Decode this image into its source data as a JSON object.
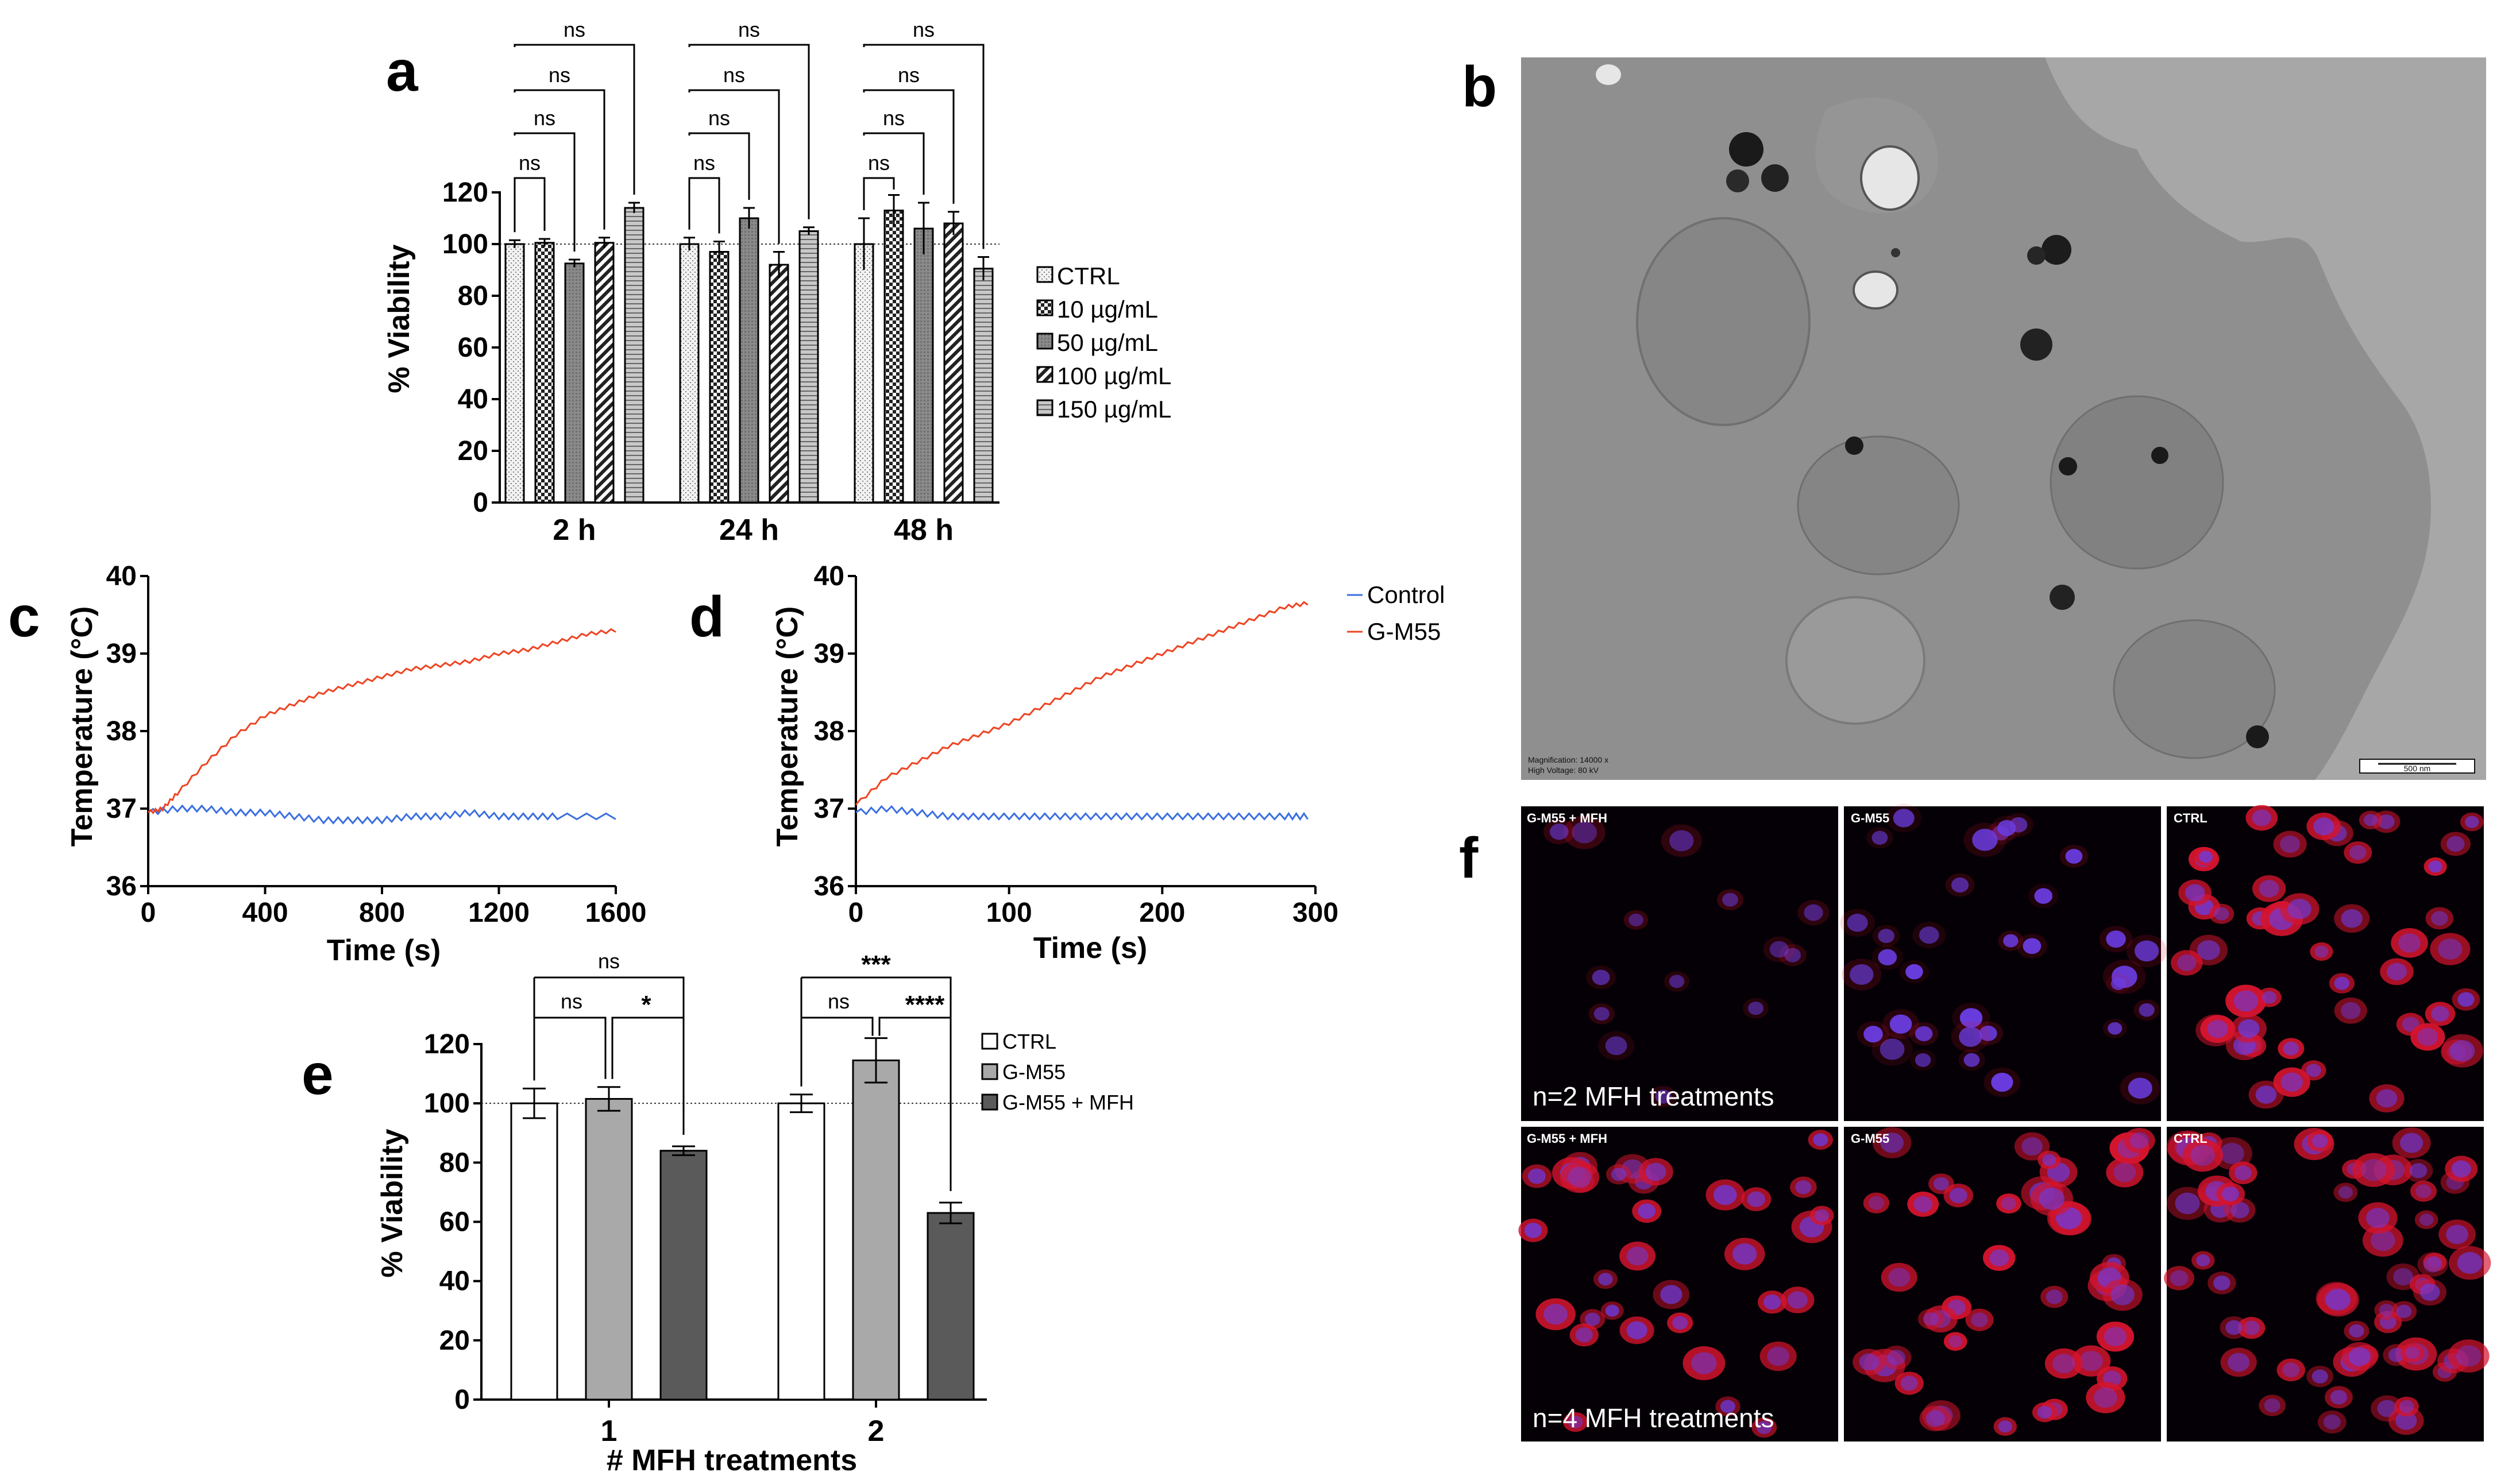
{
  "colors": {
    "control": "#3b6fe0",
    "gm55": "#ee4422",
    "bar_ctrl_e": "#ffffff",
    "bar_gm55_e": "#a9a9a9",
    "bar_gm55_mfh_e": "#5a5a5a"
  },
  "panels": {
    "a": "a",
    "b": "b",
    "c": "c",
    "d": "d",
    "e": "e",
    "f": "f"
  },
  "chart_data": [
    {
      "id": "a",
      "type": "bar",
      "title": "",
      "ylabel": "% Viability",
      "xlabel": "",
      "ylim": [
        0,
        120
      ],
      "yticks": [
        0,
        20,
        40,
        60,
        80,
        100,
        120
      ],
      "ref_line": 100,
      "categories": [
        "2 h",
        "24 h",
        "48 h"
      ],
      "series": [
        {
          "name": "CTRL",
          "pattern": "dots",
          "values": [
            100,
            100,
            100
          ],
          "errors": [
            1.5,
            2.5,
            10
          ]
        },
        {
          "name": "10 µg/mL",
          "pattern": "checker",
          "values": [
            100.5,
            97,
            113
          ],
          "errors": [
            1.5,
            4,
            6
          ]
        },
        {
          "name": "50 µg/mL",
          "pattern": "gray",
          "values": [
            92.5,
            110,
            106
          ],
          "errors": [
            1.5,
            4,
            10
          ]
        },
        {
          "name": "100 µg/mL",
          "pattern": "hatch",
          "values": [
            100.5,
            92,
            108
          ],
          "errors": [
            2,
            5,
            4.5
          ]
        },
        {
          "name": "150 µg/mL",
          "pattern": "hlines",
          "values": [
            114,
            105,
            90.5
          ],
          "errors": [
            2,
            1.5,
            4.5
          ]
        }
      ],
      "significance": [
        "ns",
        "ns",
        "ns",
        "ns",
        "ns",
        "ns",
        "ns",
        "ns",
        "ns",
        "ns",
        "ns",
        "ns"
      ]
    },
    {
      "id": "c",
      "type": "line",
      "xlabel": "Time (s)",
      "ylabel": "Temperature (°C)",
      "xlim": [
        0,
        1600
      ],
      "ylim": [
        36,
        40
      ],
      "xticks": [
        0,
        400,
        800,
        1200,
        1600
      ],
      "yticks": [
        36,
        37,
        38,
        39,
        40
      ],
      "series": [
        {
          "name": "Control",
          "x": [
            0,
            100,
            200,
            300,
            400,
            500,
            600,
            700,
            800,
            900,
            1000,
            1100,
            1200,
            1300,
            1400,
            1600
          ],
          "y": [
            36.95,
            37.0,
            37.0,
            36.95,
            36.95,
            36.9,
            36.85,
            36.85,
            36.85,
            36.9,
            36.9,
            36.95,
            36.9,
            36.9,
            36.9,
            36.9
          ]
        },
        {
          "name": "G-M55",
          "x": [
            0,
            50,
            100,
            200,
            300,
            400,
            500,
            600,
            700,
            800,
            900,
            1000,
            1100,
            1200,
            1300,
            1400,
            1500,
            1600
          ],
          "y": [
            36.95,
            37.0,
            37.2,
            37.6,
            37.95,
            38.2,
            38.35,
            38.5,
            38.6,
            38.7,
            38.8,
            38.85,
            38.9,
            39.0,
            39.05,
            39.15,
            39.25,
            39.3
          ]
        }
      ]
    },
    {
      "id": "d",
      "type": "line",
      "xlabel": "Time (s)",
      "ylabel": "Temperature (°C)",
      "xlim": [
        0,
        300
      ],
      "ylim": [
        36,
        40
      ],
      "xticks": [
        0,
        100,
        200,
        300
      ],
      "yticks": [
        36,
        37,
        38,
        39,
        40
      ],
      "legend": [
        "Control",
        "G-M55"
      ],
      "series": [
        {
          "name": "Control",
          "x": [
            0,
            20,
            40,
            60,
            80,
            100,
            120,
            140,
            160,
            180,
            200,
            220,
            240,
            260,
            280,
            295
          ],
          "y": [
            36.95,
            37.0,
            36.95,
            36.9,
            36.9,
            36.9,
            36.9,
            36.9,
            36.9,
            36.9,
            36.9,
            36.9,
            36.9,
            36.9,
            36.9,
            36.9
          ]
        },
        {
          "name": "G-M55",
          "x": [
            0,
            20,
            40,
            60,
            80,
            100,
            120,
            140,
            160,
            180,
            200,
            220,
            240,
            260,
            280,
            295
          ],
          "y": [
            37.05,
            37.4,
            37.6,
            37.8,
            37.95,
            38.1,
            38.3,
            38.5,
            38.7,
            38.85,
            39.0,
            39.15,
            39.3,
            39.45,
            39.6,
            39.65
          ]
        }
      ]
    },
    {
      "id": "e",
      "type": "bar",
      "xlabel": "# MFH treatments",
      "ylabel": "% Viability",
      "ylim": [
        0,
        120
      ],
      "yticks": [
        0,
        20,
        40,
        60,
        80,
        100,
        120
      ],
      "ref_line": 100,
      "categories": [
        "1",
        "2"
      ],
      "series": [
        {
          "name": "CTRL",
          "values": [
            100,
            100
          ],
          "errors": [
            5,
            3
          ]
        },
        {
          "name": "G-M55",
          "values": [
            101.5,
            114.5
          ],
          "errors": [
            4,
            7.5
          ]
        },
        {
          "name": "G-M55 + MFH",
          "values": [
            84,
            63
          ],
          "errors": [
            1.5,
            3.5
          ]
        }
      ],
      "significance": {
        "group1": {
          "top": "ns",
          "left": "ns",
          "right": "*"
        },
        "group2": {
          "top": "***",
          "left": "ns",
          "right": "****"
        }
      }
    }
  ],
  "tem": {
    "scale_bar": "500 nm",
    "meta_line1": "Magnification: 14000 x",
    "meta_line2": "High Voltage:   80 kV"
  },
  "micrographs": {
    "labels": [
      "G-M55 + MFH",
      "G-M55",
      "CTRL",
      "G-M55 + MFH",
      "G-M55",
      "CTRL"
    ],
    "row1_caption": "n=2 MFH treatments",
    "row2_caption": "n=4 MFH treatments"
  }
}
